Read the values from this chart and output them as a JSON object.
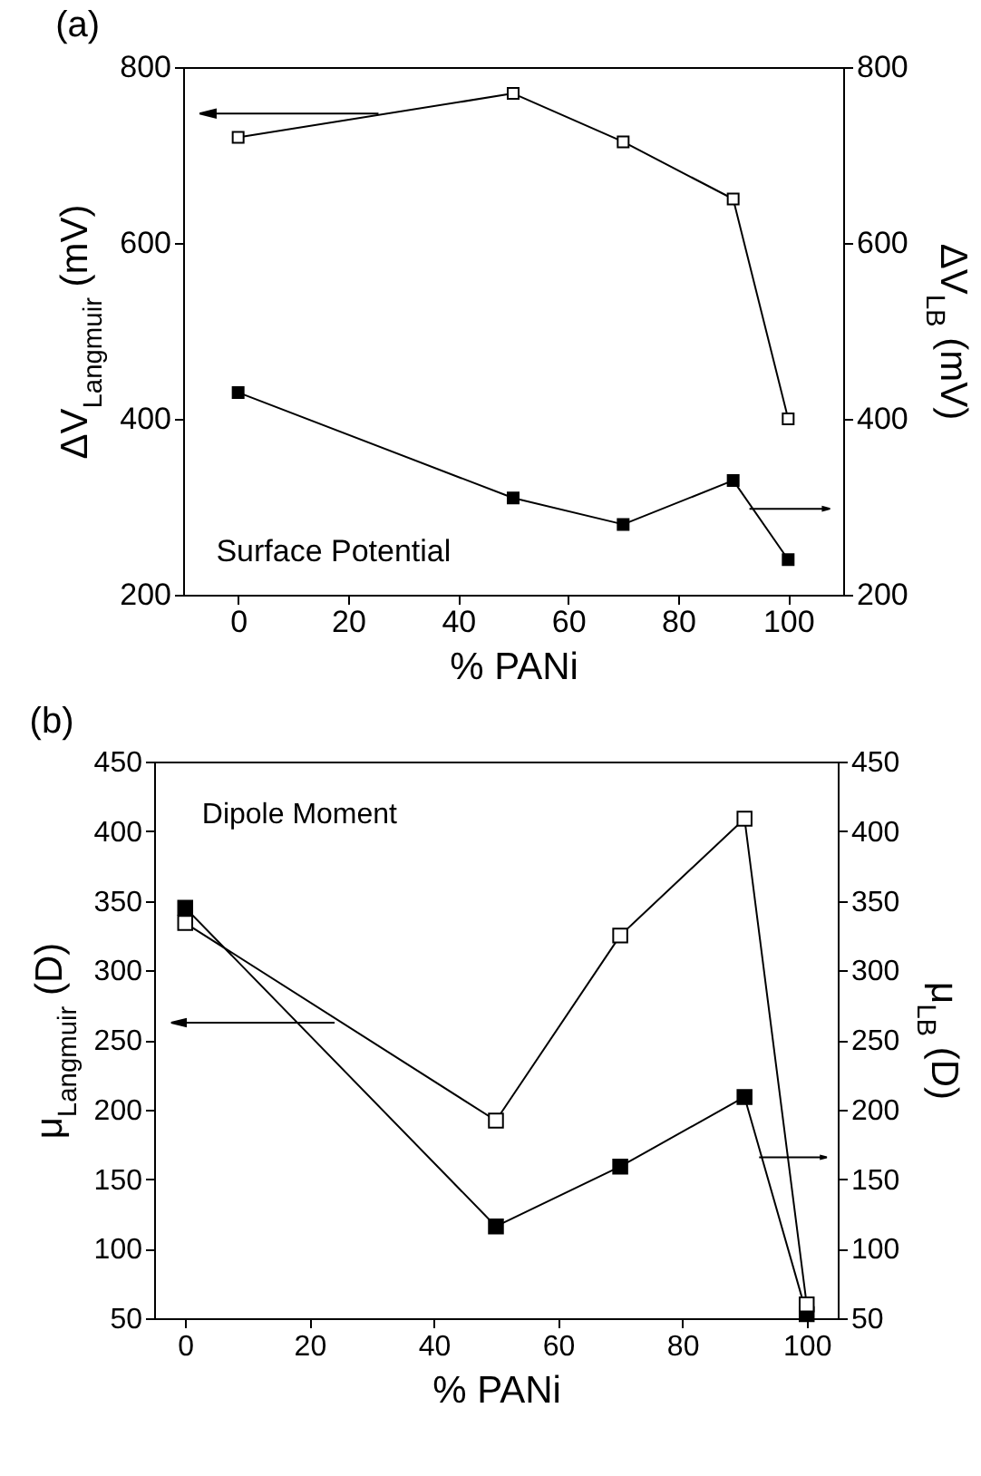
{
  "chart_data": [
    {
      "type": "line",
      "title": "(a)",
      "xlabel": "% PANi",
      "ylabel": "ΔV$_{Langmuir}$ (mV)",
      "y2label": "ΔV$_{LB}$ (mV)",
      "x": [
        0,
        50,
        70,
        90,
        100
      ],
      "series": [
        {
          "color": "#000000",
          "values": [
            720,
            770,
            715,
            650,
            400
          ]
        },
        {
          "color": "#000000",
          "axis": "y2",
          "values": [
            430,
            310,
            280,
            330,
            240
          ]
        }
      ],
      "xlim": [
        -10,
        110
      ],
      "xticks": [
        0,
        20,
        40,
        60,
        80,
        100
      ],
      "ylim": [
        200,
        800
      ],
      "yticks": [
        200,
        400,
        600,
        800
      ],
      "y2lim": [
        200,
        800
      ],
      "y2ticks": [
        200,
        400,
        600,
        800
      ],
      "marker": "square",
      "annotations": [
        "Surface Potential"
      ]
    },
    {
      "type": "line",
      "title": "(b)",
      "xlabel": "% PANi",
      "ylabel": "μ$_{Langmuir}$ (D)",
      "y2label": "μ$_{LB}$ (D)",
      "x": [
        0,
        50,
        70,
        90,
        100
      ],
      "series": [
        {
          "color": "#000000",
          "values": [
            334,
            192,
            325,
            409,
            60
          ]
        },
        {
          "color": "#000000",
          "axis": "y2",
          "values": [
            345,
            116,
            159,
            209,
            53
          ]
        }
      ],
      "xlim": [
        -5,
        105
      ],
      "xticks": [
        0,
        20,
        40,
        60,
        80,
        100
      ],
      "ylim": [
        50,
        450
      ],
      "yticks": [
        50,
        100,
        150,
        200,
        250,
        300,
        350,
        400,
        450
      ],
      "y2lim": [
        50,
        450
      ],
      "y2ticks": [
        50,
        100,
        150,
        200,
        250,
        300,
        350,
        400,
        450
      ],
      "marker": "square",
      "annotations": [
        "Dipole Moment"
      ]
    }
  ]
}
